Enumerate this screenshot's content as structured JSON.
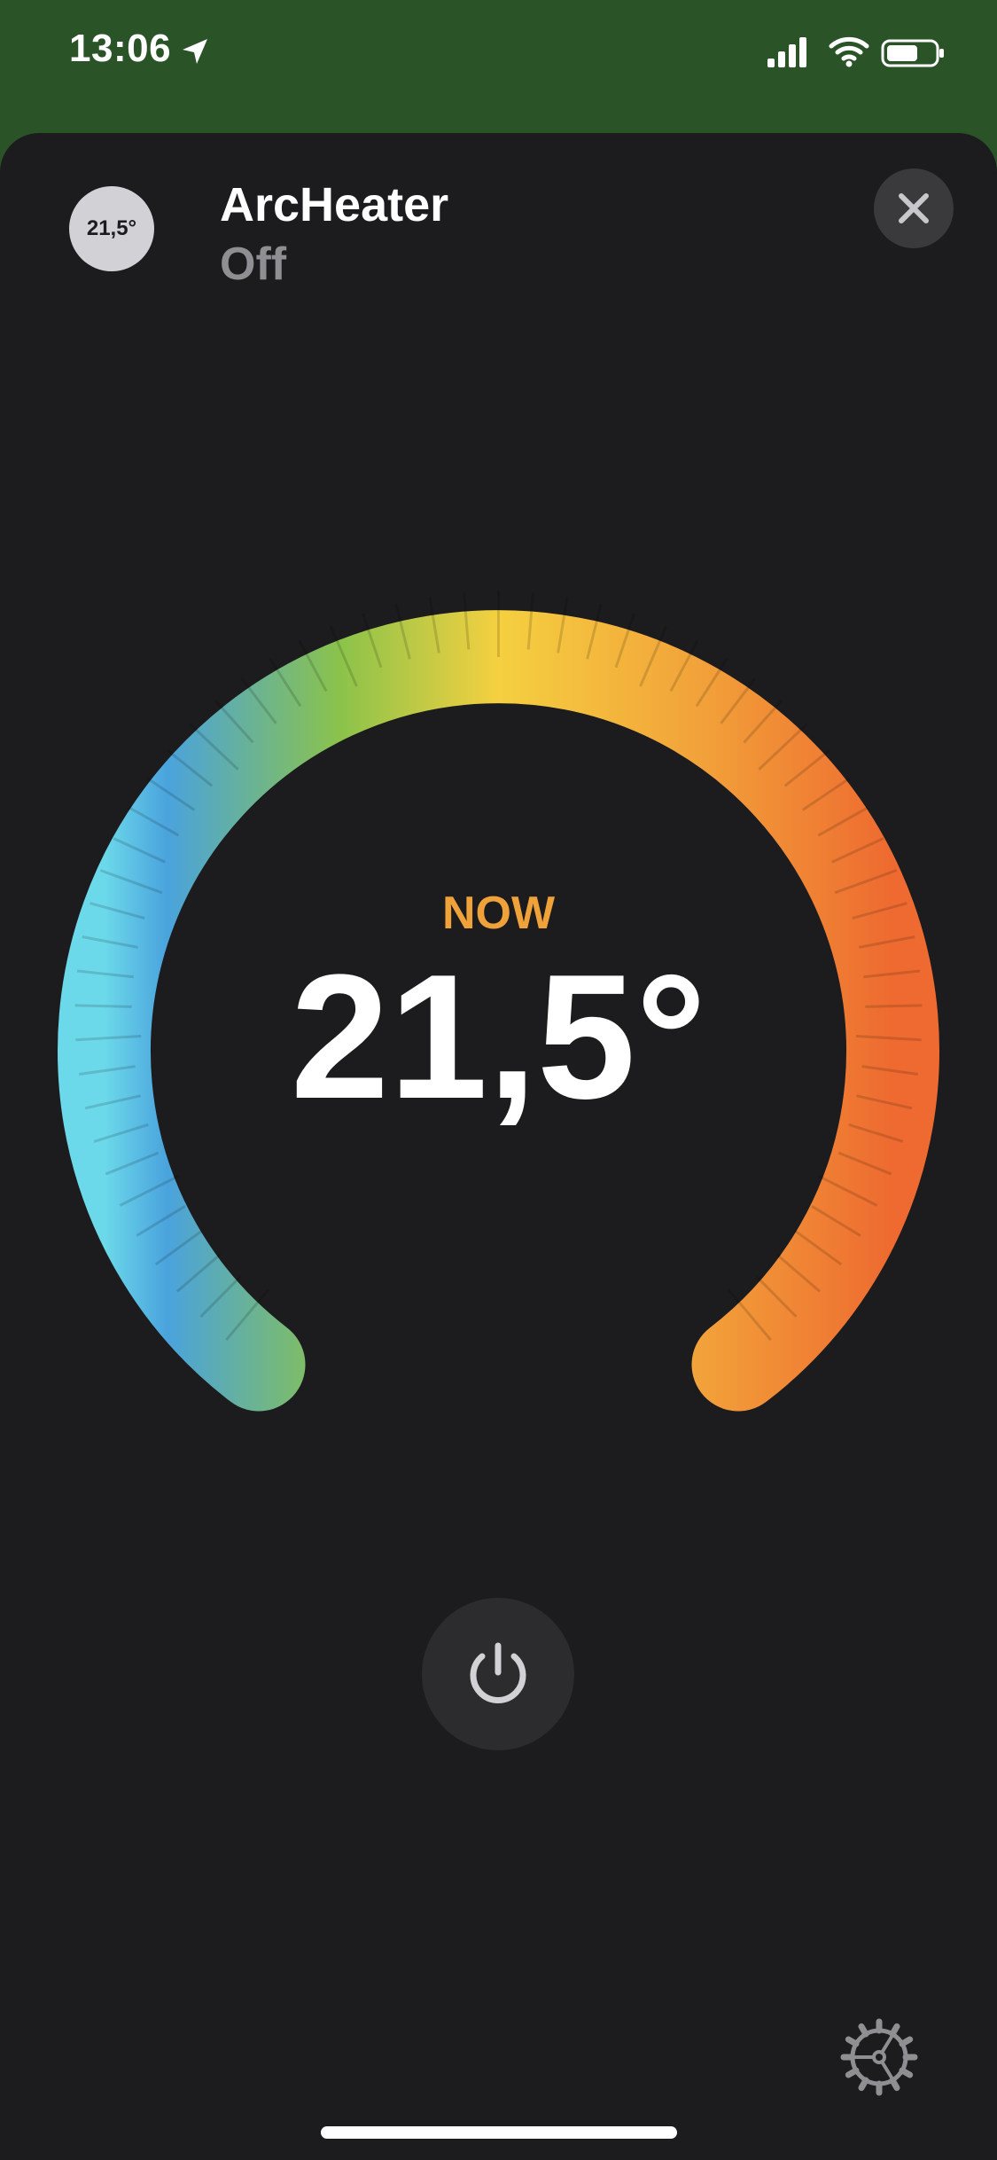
{
  "status_bar": {
    "time": "13:06",
    "location_icon": "location-arrow-icon",
    "signal_icon": "cellular-signal-icon",
    "wifi_icon": "wifi-icon",
    "battery_icon": "battery-icon",
    "background_color": "#2a5428"
  },
  "header": {
    "badge_text": "21,5°",
    "device_name": "ArcHeater",
    "device_status": "Off",
    "close_icon": "close-icon"
  },
  "thermostat": {
    "label": "NOW",
    "current_temperature": "21,5°",
    "label_color": "#f0a23a",
    "gradient_colors": [
      "#6cd9ea",
      "#4aa3dd",
      "#8bc34a",
      "#f5d040",
      "#f2a33a",
      "#ee6a30"
    ]
  },
  "controls": {
    "power_icon": "power-icon",
    "settings_icon": "gear-icon"
  }
}
